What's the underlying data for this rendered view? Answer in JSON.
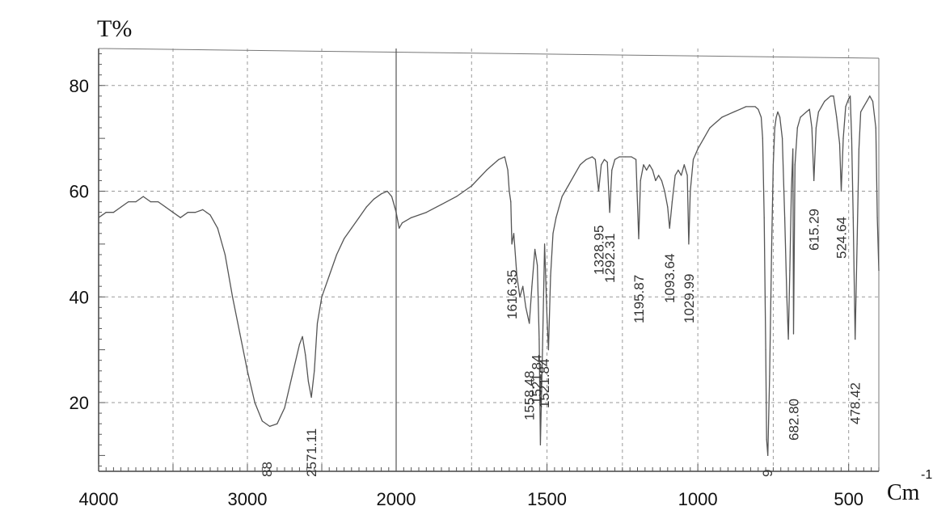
{
  "chart_data": {
    "type": "line",
    "ylabel": "T%",
    "xlabel": "Cm",
    "xlabel_suffix": "-1",
    "xlim": [
      4000,
      400
    ],
    "ylim": [
      7,
      87
    ],
    "x_ticks": [
      4000,
      3000,
      2000,
      1500,
      1000,
      500
    ],
    "y_ticks": [
      20,
      40,
      60,
      80
    ],
    "grid": true,
    "axis_scale_note": "wavenumber axis with scale change at 2000",
    "series": [
      {
        "points": [
          [
            4000,
            55
          ],
          [
            3950,
            56
          ],
          [
            3900,
            56
          ],
          [
            3850,
            57
          ],
          [
            3800,
            58
          ],
          [
            3750,
            58
          ],
          [
            3700,
            59
          ],
          [
            3650,
            58
          ],
          [
            3600,
            58
          ],
          [
            3550,
            57
          ],
          [
            3500,
            56
          ],
          [
            3450,
            55
          ],
          [
            3400,
            56
          ],
          [
            3350,
            56
          ],
          [
            3300,
            56.5
          ],
          [
            3250,
            55.5
          ],
          [
            3200,
            53
          ],
          [
            3150,
            48
          ],
          [
            3100,
            40
          ],
          [
            3050,
            33
          ],
          [
            3000,
            26
          ],
          [
            2950,
            20
          ],
          [
            2900,
            16.5
          ],
          [
            2850,
            15.5
          ],
          [
            2800,
            16
          ],
          [
            2750,
            19
          ],
          [
            2700,
            25
          ],
          [
            2650,
            31
          ],
          [
            2630,
            32.5
          ],
          [
            2610,
            29
          ],
          [
            2590,
            24
          ],
          [
            2570,
            21
          ],
          [
            2550,
            26
          ],
          [
            2530,
            35
          ],
          [
            2500,
            40
          ],
          [
            2450,
            44
          ],
          [
            2400,
            48
          ],
          [
            2350,
            51
          ],
          [
            2300,
            53
          ],
          [
            2250,
            55
          ],
          [
            2200,
            57
          ],
          [
            2150,
            58.5
          ],
          [
            2100,
            59.5
          ],
          [
            2060,
            60
          ],
          [
            2030,
            59
          ],
          [
            2010,
            57
          ],
          [
            2000,
            56
          ],
          [
            1990,
            53
          ],
          [
            1980,
            54
          ],
          [
            1950,
            55
          ],
          [
            1900,
            56
          ],
          [
            1850,
            57.5
          ],
          [
            1800,
            59
          ],
          [
            1750,
            61
          ],
          [
            1700,
            64
          ],
          [
            1680,
            65
          ],
          [
            1660,
            66
          ],
          [
            1640,
            66.5
          ],
          [
            1630,
            64
          ],
          [
            1625,
            60
          ],
          [
            1620,
            58
          ],
          [
            1616.35,
            50
          ],
          [
            1610,
            52
          ],
          [
            1600,
            44
          ],
          [
            1590,
            40
          ],
          [
            1580,
            42
          ],
          [
            1570,
            38
          ],
          [
            1558.48,
            35
          ],
          [
            1550,
            42
          ],
          [
            1540,
            49
          ],
          [
            1532,
            46
          ],
          [
            1526,
            32
          ],
          [
            1521.84,
            12
          ],
          [
            1515,
            30
          ],
          [
            1508,
            50
          ],
          [
            1500,
            36
          ],
          [
            1495,
            30
          ],
          [
            1488,
            44
          ],
          [
            1480,
            52
          ],
          [
            1470,
            55
          ],
          [
            1460,
            57
          ],
          [
            1450,
            59
          ],
          [
            1430,
            61
          ],
          [
            1410,
            63
          ],
          [
            1390,
            65
          ],
          [
            1370,
            66
          ],
          [
            1350,
            66.5
          ],
          [
            1340,
            66
          ],
          [
            1328.95,
            60
          ],
          [
            1320,
            65
          ],
          [
            1310,
            66
          ],
          [
            1300,
            65.5
          ],
          [
            1292.31,
            56
          ],
          [
            1285,
            64
          ],
          [
            1275,
            66
          ],
          [
            1260,
            66.5
          ],
          [
            1240,
            66.5
          ],
          [
            1220,
            66.5
          ],
          [
            1205,
            66
          ],
          [
            1195.87,
            51
          ],
          [
            1190,
            62
          ],
          [
            1180,
            65
          ],
          [
            1170,
            64
          ],
          [
            1160,
            65
          ],
          [
            1150,
            64
          ],
          [
            1140,
            62
          ],
          [
            1130,
            63
          ],
          [
            1120,
            62
          ],
          [
            1110,
            60
          ],
          [
            1100,
            57
          ],
          [
            1093.64,
            53
          ],
          [
            1085,
            58
          ],
          [
            1075,
            63
          ],
          [
            1065,
            64
          ],
          [
            1055,
            63
          ],
          [
            1045,
            65
          ],
          [
            1035,
            63
          ],
          [
            1029.99,
            50
          ],
          [
            1025,
            60
          ],
          [
            1015,
            66
          ],
          [
            1000,
            68
          ],
          [
            980,
            70
          ],
          [
            960,
            72
          ],
          [
            940,
            73
          ],
          [
            920,
            74
          ],
          [
            900,
            74.5
          ],
          [
            880,
            75
          ],
          [
            860,
            75.5
          ],
          [
            840,
            76
          ],
          [
            820,
            76
          ],
          [
            810,
            76
          ],
          [
            800,
            75.5
          ],
          [
            790,
            74
          ],
          [
            785,
            70
          ],
          [
            780,
            55
          ],
          [
            775,
            30
          ],
          [
            772,
            13
          ],
          [
            768,
            10
          ],
          [
            762,
            25
          ],
          [
            755,
            50
          ],
          [
            750,
            65
          ],
          [
            745,
            72
          ],
          [
            740,
            74
          ],
          [
            735,
            75
          ],
          [
            728,
            74
          ],
          [
            720,
            70
          ],
          [
            712,
            55
          ],
          [
            705,
            40
          ],
          [
            700,
            32
          ],
          [
            695,
            45
          ],
          [
            690,
            60
          ],
          [
            685,
            68
          ],
          [
            682.8,
            33
          ],
          [
            678,
            65
          ],
          [
            670,
            72
          ],
          [
            660,
            74
          ],
          [
            650,
            74.5
          ],
          [
            640,
            75
          ],
          [
            630,
            75.5
          ],
          [
            622,
            72
          ],
          [
            615.29,
            62
          ],
          [
            608,
            72
          ],
          [
            600,
            75
          ],
          [
            590,
            76
          ],
          [
            580,
            77
          ],
          [
            570,
            77.5
          ],
          [
            560,
            78
          ],
          [
            550,
            78
          ],
          [
            540,
            74
          ],
          [
            530,
            69
          ],
          [
            524.64,
            60
          ],
          [
            518,
            70
          ],
          [
            510,
            76
          ],
          [
            500,
            77.5
          ],
          [
            495,
            78
          ],
          [
            490,
            70
          ],
          [
            485,
            55
          ],
          [
            478.42,
            32
          ],
          [
            472,
            50
          ],
          [
            466,
            68
          ],
          [
            460,
            75
          ],
          [
            450,
            76
          ],
          [
            440,
            77
          ],
          [
            430,
            78
          ],
          [
            420,
            77
          ],
          [
            410,
            72
          ],
          [
            405,
            55
          ],
          [
            400,
            45
          ]
        ]
      }
    ],
    "peak_labels": [
      {
        "x": 2870,
        "text": "88"
      },
      {
        "x": 2570,
        "text": "2571.11"
      },
      {
        "x": 1616.35,
        "text": "1616.35"
      },
      {
        "x": 1558.48,
        "text": "1558.48"
      },
      {
        "x": 1535,
        "text": "1521.84"
      },
      {
        "x": 1510,
        "text": "1521.84"
      },
      {
        "x": 1328.95,
        "text": "1328.95"
      },
      {
        "x": 1292.31,
        "text": "1292.31"
      },
      {
        "x": 1195.87,
        "text": "1195.87"
      },
      {
        "x": 1093.64,
        "text": "1093.64"
      },
      {
        "x": 1029.99,
        "text": "1029.99"
      },
      {
        "x": 770,
        "text": "9"
      },
      {
        "x": 682.8,
        "text": "682.80"
      },
      {
        "x": 615.29,
        "text": "615.29"
      },
      {
        "x": 524.64,
        "text": "524.64"
      },
      {
        "x": 478.42,
        "text": "478.42"
      }
    ]
  }
}
